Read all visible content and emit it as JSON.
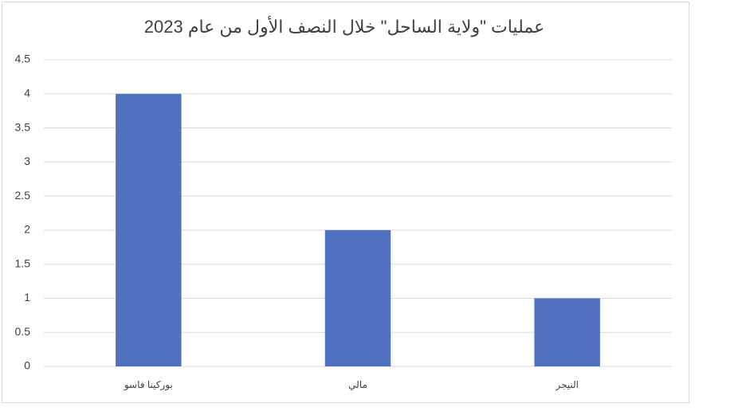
{
  "chart_data": {
    "type": "bar",
    "title": "عمليات \"ولاية الساحل\" خلال النصف الأول من عام 2023",
    "categories": [
      "بوركينا فاسو",
      "مالي",
      "النيجر"
    ],
    "values": [
      4,
      2,
      1
    ],
    "color": "#4f71be",
    "ylim": [
      0,
      4.5
    ],
    "yticks": [
      0,
      0.5,
      1,
      1.5,
      2,
      2.5,
      3,
      3.5,
      4,
      4.5
    ],
    "grid": true
  }
}
